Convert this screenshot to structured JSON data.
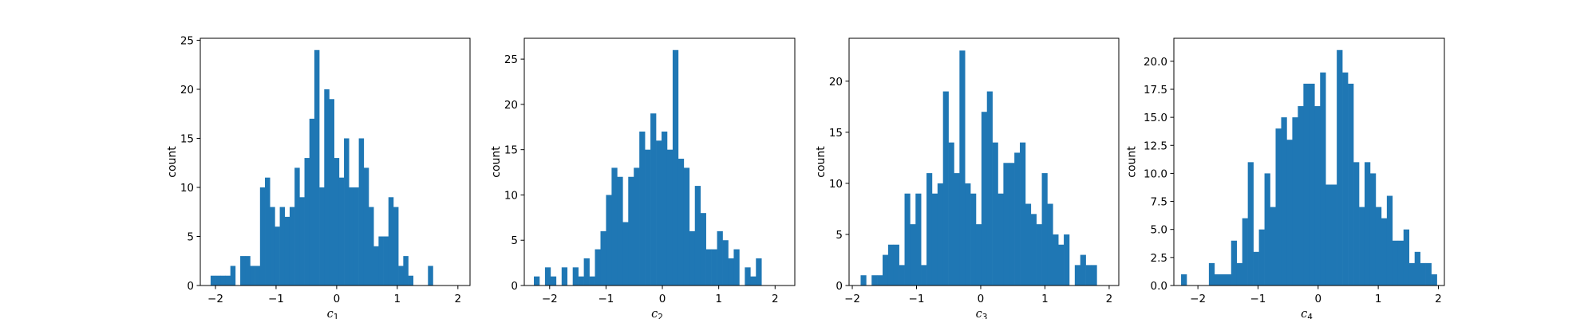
{
  "chart_data": [
    {
      "type": "bar",
      "xlabel": "c",
      "xlabel_subscript": "1",
      "ylabel": "count",
      "xlim": [
        -2.25,
        2.2
      ],
      "ylim": [
        0,
        25.2
      ],
      "xticks": [
        -2,
        -1,
        0,
        1,
        2
      ],
      "xtick_labels": [
        "−2",
        "−1",
        "0",
        "1",
        "2"
      ],
      "yticks": [
        0,
        5,
        10,
        15,
        20,
        25
      ],
      "ytick_labels": [
        "0",
        "5",
        "10",
        "15",
        "20",
        "25"
      ],
      "bin_start": -2.08,
      "bin_width": 0.0815,
      "counts": [
        1,
        1,
        1,
        1,
        2,
        0,
        3,
        3,
        2,
        2,
        10,
        11,
        8,
        6,
        8,
        7,
        8,
        12,
        9,
        13,
        17,
        24,
        10,
        20,
        19,
        13,
        11,
        15,
        10,
        10,
        15,
        12,
        8,
        4,
        5,
        5,
        9,
        8,
        2,
        3,
        1,
        0,
        0,
        0,
        2
      ],
      "color": "#1f77b4"
    },
    {
      "type": "bar",
      "xlabel": "c",
      "xlabel_subscript": "2",
      "ylabel": "count",
      "xlim": [
        -2.45,
        2.35
      ],
      "ylim": [
        0,
        27.3
      ],
      "xticks": [
        -2,
        -1,
        0,
        1,
        2
      ],
      "xtick_labels": [
        "−2",
        "−1",
        "0",
        "1",
        "2"
      ],
      "yticks": [
        0,
        5,
        10,
        15,
        20,
        25
      ],
      "ytick_labels": [
        "0",
        "5",
        "10",
        "15",
        "20",
        "25"
      ],
      "bin_start": -2.28,
      "bin_width": 0.0985,
      "counts": [
        1,
        0,
        2,
        1,
        0,
        2,
        0,
        2,
        1,
        3,
        1,
        4,
        6,
        10,
        13,
        12,
        7,
        12,
        13,
        17,
        15,
        19,
        16,
        17,
        15,
        26,
        14,
        13,
        6,
        11,
        8,
        4,
        4,
        6,
        5,
        3,
        4,
        0,
        2,
        1,
        3
      ],
      "color": "#1f77b4"
    },
    {
      "type": "bar",
      "xlabel": "c",
      "xlabel_subscript": "3",
      "ylabel": "count",
      "xlim": [
        -2.05,
        2.15
      ],
      "ylim": [
        0,
        24.2
      ],
      "xticks": [
        -2,
        -1,
        0,
        1,
        2
      ],
      "xtick_labels": [
        "−2",
        "−1",
        "0",
        "1",
        "2"
      ],
      "yticks": [
        0,
        5,
        10,
        15,
        20
      ],
      "ytick_labels": [
        "0",
        "5",
        "10",
        "15",
        "20"
      ],
      "bin_start": -1.87,
      "bin_width": 0.0855,
      "counts": [
        1,
        0,
        1,
        1,
        3,
        4,
        4,
        2,
        9,
        6,
        9,
        2,
        11,
        9,
        10,
        19,
        14,
        11,
        23,
        10,
        9,
        6,
        17,
        19,
        14,
        9,
        12,
        12,
        13,
        14,
        8,
        7,
        6,
        11,
        8,
        5,
        4,
        5,
        0,
        2,
        3,
        2,
        2
      ],
      "color": "#1f77b4"
    },
    {
      "type": "bar",
      "xlabel": "c",
      "xlabel_subscript": "4",
      "ylabel": "count",
      "xlim": [
        -2.4,
        2.1
      ],
      "ylim": [
        0,
        22.05
      ],
      "xticks": [
        -2,
        -1,
        0,
        1,
        2
      ],
      "xtick_labels": [
        "−2",
        "−1",
        "0",
        "1",
        "2"
      ],
      "yticks": [
        0,
        2.5,
        5.0,
        7.5,
        10.0,
        12.5,
        15.0,
        17.5,
        20.0
      ],
      "ytick_labels": [
        "0.0",
        "2.5",
        "5.0",
        "7.5",
        "10.0",
        "12.5",
        "15.0",
        "17.5",
        "20.0"
      ],
      "bin_start": -2.28,
      "bin_width": 0.0925,
      "counts": [
        1,
        0,
        0,
        0,
        0,
        2,
        1,
        1,
        1,
        4,
        2,
        6,
        11,
        3,
        5,
        10,
        7,
        14,
        15,
        13,
        15,
        16,
        18,
        18,
        16,
        19,
        9,
        9,
        21,
        19,
        18,
        11,
        7,
        11,
        10,
        7,
        6,
        8,
        4,
        4,
        5,
        2,
        3,
        2,
        2,
        1
      ],
      "color": "#1f77b4"
    }
  ]
}
